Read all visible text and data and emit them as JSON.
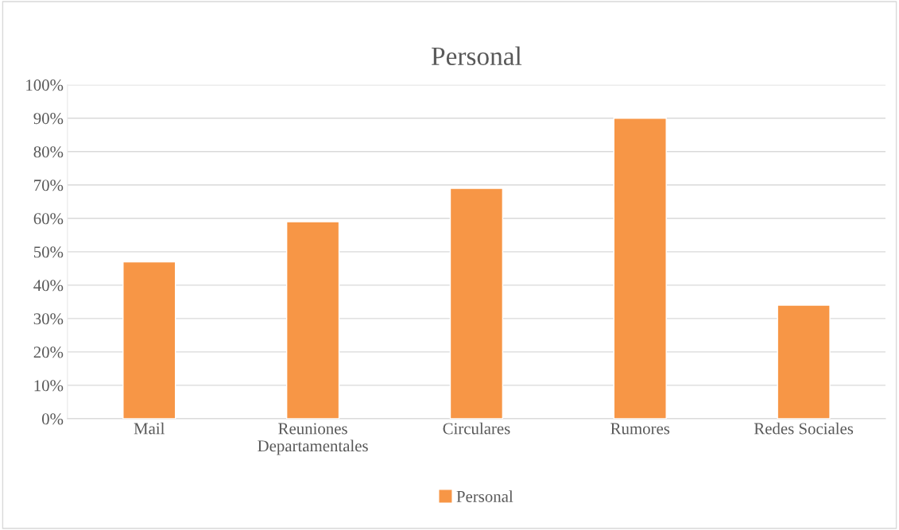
{
  "chart_data": {
    "type": "bar",
    "title": "Personal",
    "categories": [
      "Mail",
      "Reuniones Departamentales",
      "Circulares",
      "Rumores",
      "Redes Sociales"
    ],
    "series": [
      {
        "name": "Personal",
        "color": "#f79646",
        "values": [
          47,
          59,
          69,
          90,
          34
        ]
      }
    ],
    "ylim": [
      0,
      100
    ],
    "yticks": [
      {
        "value": 0,
        "label": "0%"
      },
      {
        "value": 10,
        "label": "10%"
      },
      {
        "value": 20,
        "label": "20%"
      },
      {
        "value": 30,
        "label": "30%"
      },
      {
        "value": 40,
        "label": "40%"
      },
      {
        "value": 50,
        "label": "50%"
      },
      {
        "value": 60,
        "label": "60%"
      },
      {
        "value": 70,
        "label": "70%"
      },
      {
        "value": 80,
        "label": "80%"
      },
      {
        "value": 90,
        "label": "90%"
      },
      {
        "value": 100,
        "label": "100%"
      }
    ],
    "grid": "y",
    "legend": "bottom"
  }
}
